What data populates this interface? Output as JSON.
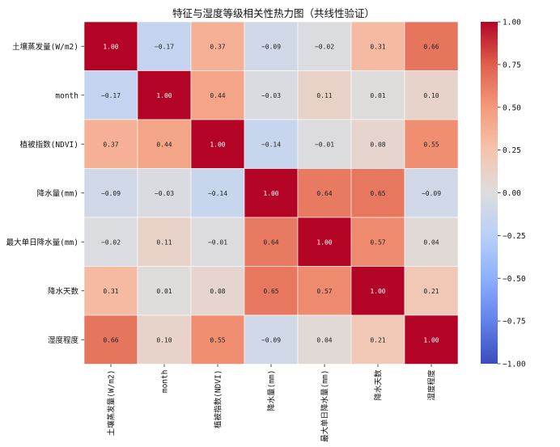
{
  "chart_data": {
    "type": "heatmap",
    "title": "特征与湿度等级相关性热力图（共线性验证）",
    "row_labels": [
      "土壤蒸发量(W/m2)",
      "month",
      "植被指数(NDVI)",
      "降水量(mm)",
      "最大单日降水量(mm)",
      "降水天数",
      "湿度程度"
    ],
    "col_labels": [
      "土壤蒸发量(W/m2)",
      "month",
      "植被指数(NDVI)",
      "降水量(mm)",
      "最大单日降水量(mm)",
      "降水天数",
      "湿度程度"
    ],
    "values": [
      [
        1.0,
        -0.17,
        0.37,
        -0.09,
        -0.02,
        0.31,
        0.66
      ],
      [
        -0.17,
        1.0,
        0.44,
        -0.03,
        0.11,
        0.01,
        0.1
      ],
      [
        0.37,
        0.44,
        1.0,
        -0.14,
        -0.01,
        0.08,
        0.55
      ],
      [
        -0.09,
        -0.03,
        -0.14,
        1.0,
        0.64,
        0.65,
        -0.09
      ],
      [
        -0.02,
        0.11,
        -0.01,
        0.64,
        1.0,
        0.57,
        0.04
      ],
      [
        0.31,
        0.01,
        0.08,
        0.65,
        0.57,
        1.0,
        0.21
      ],
      [
        0.66,
        0.1,
        0.55,
        -0.09,
        0.04,
        0.21,
        1.0
      ]
    ],
    "colormap": "coolwarm",
    "vmin": -1.0,
    "vmax": 1.0,
    "colorbar_ticks": [
      1.0,
      0.75,
      0.5,
      0.25,
      0.0,
      -0.25,
      -0.5,
      -0.75,
      -1.0
    ],
    "colorbar_tick_labels": [
      "1.00",
      "0.75",
      "0.50",
      "0.25",
      "0.00",
      "−0.25",
      "−0.50",
      "−0.75",
      "−1.00"
    ],
    "value_format": "2f"
  }
}
